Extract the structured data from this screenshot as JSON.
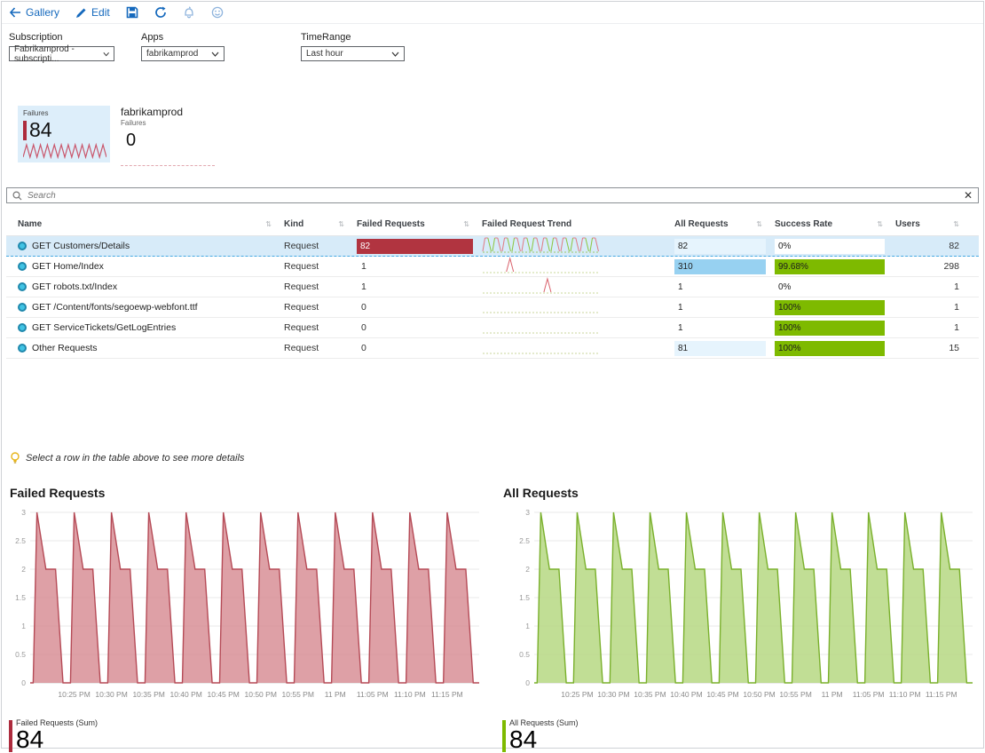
{
  "toolbar": {
    "gallery_label": "Gallery",
    "edit_label": "Edit",
    "accent_color": "#1569bd",
    "disabled_icon_color": "#8fb4dd"
  },
  "filters": [
    {
      "label": "Subscription",
      "value": "Fabrikamprod - subscripti..."
    },
    {
      "label": "Apps",
      "value": "fabrikamprod"
    },
    {
      "label": "TimeRange",
      "value": "Last hour"
    }
  ],
  "tiles": {
    "failures_tile": {
      "label": "Failures",
      "value": "84",
      "accent_color": "#ad2c3e",
      "bg_color": "#ddeefa"
    },
    "app_tile": {
      "title": "fabrikamprod",
      "label": "Failures",
      "value": "0"
    }
  },
  "search": {
    "placeholder": "Search"
  },
  "table": {
    "columns": [
      {
        "label": "Name",
        "sortable": true
      },
      {
        "label": "Kind",
        "sortable": true
      },
      {
        "label": "Failed Requests",
        "sortable": true
      },
      {
        "label": "Failed Request Trend",
        "sortable": false
      },
      {
        "label": "All Requests",
        "sortable": true
      },
      {
        "label": "Success Rate",
        "sortable": true
      },
      {
        "label": "Users",
        "sortable": true
      }
    ],
    "rows": [
      {
        "name": "GET Customers/Details",
        "kind": "Request",
        "failed_requests": "82",
        "failed_bar": true,
        "trend": "zigzag",
        "all_requests": "82",
        "all_heat": "light",
        "success_rate": "0%",
        "success_pct": 0,
        "users": "82",
        "selected": true
      },
      {
        "name": "GET Home/Index",
        "kind": "Request",
        "failed_requests": "1",
        "failed_bar": false,
        "trend": "spike",
        "spike_pos": 0.24,
        "all_requests": "310",
        "all_heat": "strong",
        "success_rate": "99.68%",
        "success_pct": 99.68,
        "users": "298",
        "selected": false
      },
      {
        "name": "GET robots.txt/Index",
        "kind": "Request",
        "failed_requests": "1",
        "failed_bar": false,
        "trend": "spike",
        "spike_pos": 0.56,
        "all_requests": "1",
        "all_heat": "none",
        "success_rate": "0%",
        "success_pct": 0,
        "users": "1",
        "selected": false
      },
      {
        "name": "GET /Content/fonts/segoewp-webfont.ttf",
        "kind": "Request",
        "failed_requests": "0",
        "failed_bar": false,
        "trend": "flat",
        "all_requests": "1",
        "all_heat": "none",
        "success_rate": "100%",
        "success_pct": 100,
        "users": "1",
        "selected": false
      },
      {
        "name": "GET ServiceTickets/GetLogEntries",
        "kind": "Request",
        "failed_requests": "0",
        "failed_bar": false,
        "trend": "flat",
        "all_requests": "1",
        "all_heat": "none",
        "success_rate": "100%",
        "success_pct": 100,
        "users": "1",
        "selected": false
      },
      {
        "name": "Other Requests",
        "kind": "Request",
        "failed_requests": "0",
        "failed_bar": false,
        "trend": "flat",
        "all_requests": "81",
        "all_heat": "light",
        "success_rate": "100%",
        "success_pct": 100,
        "users": "15",
        "selected": false
      }
    ],
    "heat_colors": {
      "strong": "#97d1f1",
      "light": "#e6f4fd",
      "none": "transparent"
    },
    "success_bar_color": "#7eba00",
    "failed_bar_color": "#b13440"
  },
  "note": {
    "text": "Select a row in the table above to see more details"
  },
  "chart_data": [
    {
      "type": "area",
      "title": "Failed Requests",
      "series": [
        {
          "name": "Failed Requests (Sum)",
          "pattern_per_cycle": [
            [
              0,
              0
            ],
            [
              0.5,
              3
            ],
            [
              1.7,
              2
            ],
            [
              3.0,
              2
            ],
            [
              4.0,
              0
            ]
          ],
          "cycle_minutes": 5,
          "cycles": 12,
          "first_cycle_offset_min": 0.4
        }
      ],
      "x_start_time": "10:20 PM",
      "x_labels": [
        "10:25 PM",
        "10:30 PM",
        "10:35 PM",
        "10:40 PM",
        "10:45 PM",
        "10:50 PM",
        "10:55 PM",
        "11 PM",
        "11:05 PM",
        "11:10 PM",
        "11:15 PM"
      ],
      "y_ticks": [
        0,
        0.5,
        1,
        1.5,
        2,
        2.5,
        3
      ],
      "ylim": [
        0,
        3
      ],
      "grid": true,
      "line_color": "#b54a56",
      "fill_color": "#d88f97"
    },
    {
      "type": "area",
      "title": "All Requests",
      "series": [
        {
          "name": "All Requests (Sum)",
          "pattern_per_cycle": [
            [
              0,
              0
            ],
            [
              0.5,
              3
            ],
            [
              1.7,
              2
            ],
            [
              3.0,
              2
            ],
            [
              4.0,
              0
            ]
          ],
          "cycle_minutes": 5,
          "cycles": 12,
          "first_cycle_offset_min": 0.4
        }
      ],
      "x_start_time": "10:20 PM",
      "x_labels": [
        "10:25 PM",
        "10:30 PM",
        "10:35 PM",
        "10:40 PM",
        "10:45 PM",
        "10:50 PM",
        "10:55 PM",
        "11 PM",
        "11:05 PM",
        "11:10 PM",
        "11:15 PM"
      ],
      "y_ticks": [
        0,
        0.5,
        1,
        1.5,
        2,
        2.5,
        3
      ],
      "ylim": [
        0,
        3
      ],
      "grid": true,
      "line_color": "#7ab02c",
      "fill_color": "#b6d883"
    }
  ],
  "summaries": [
    {
      "label": "Failed Requests (Sum)",
      "value": "84",
      "color": "#ad2c3e"
    },
    {
      "label": "All Requests (Sum)",
      "value": "84",
      "color": "#7eba00"
    }
  ]
}
